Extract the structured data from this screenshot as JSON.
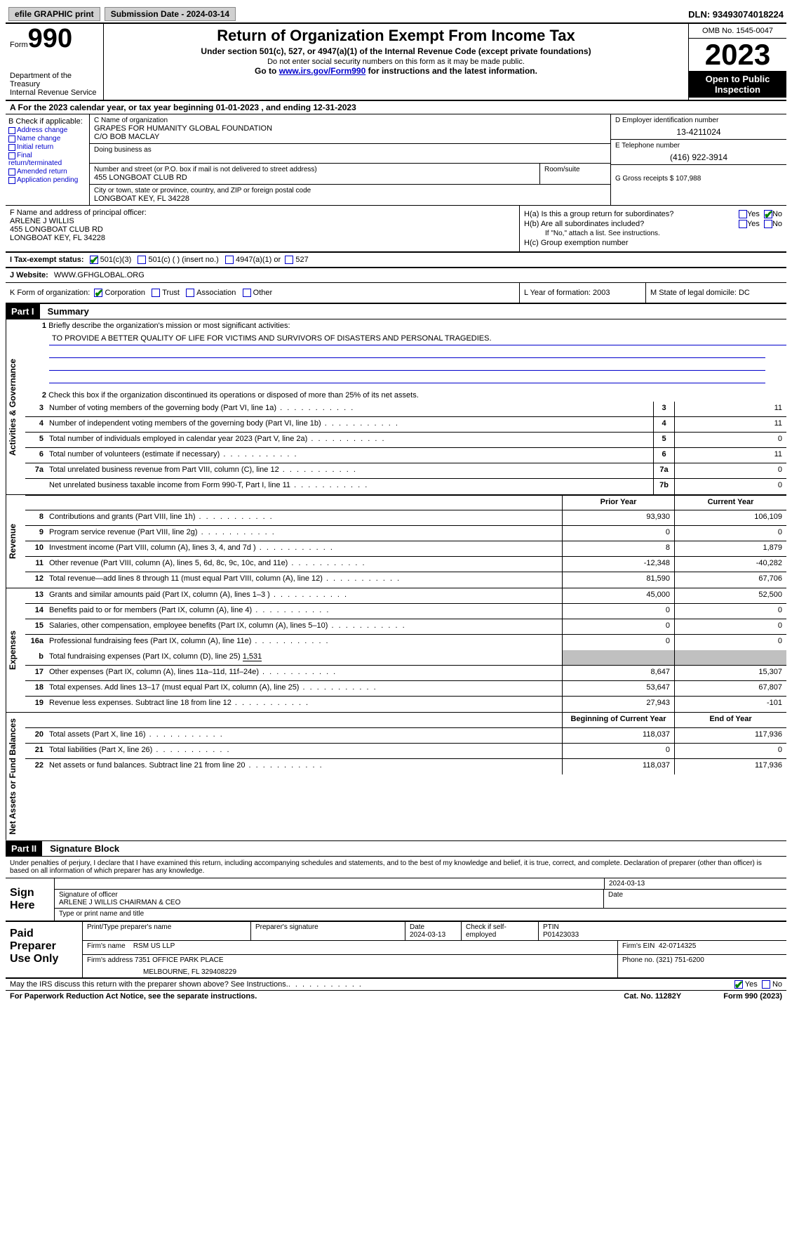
{
  "top": {
    "efile_btn": "efile GRAPHIC print",
    "submission_label": "Submission Date - 2024-03-14",
    "dln": "DLN: 93493074018224"
  },
  "header": {
    "form_label": "Form",
    "form_number": "990",
    "dept1": "Department of the Treasury",
    "dept2": "Internal Revenue Service",
    "title": "Return of Organization Exempt From Income Tax",
    "subtitle": "Under section 501(c), 527, or 4947(a)(1) of the Internal Revenue Code (except private foundations)",
    "instr1": "Do not enter social security numbers on this form as it may be made public.",
    "goto_prefix": "Go to ",
    "goto_link": "www.irs.gov/Form990",
    "goto_suffix": " for instructions and the latest information.",
    "omb": "OMB No. 1545-0047",
    "year": "2023",
    "open": "Open to Public Inspection"
  },
  "row_a": "A For the 2023 calendar year, or tax year beginning 01-01-2023   , and ending 12-31-2023",
  "col_b": {
    "label": "B Check if applicable:",
    "items": [
      "Address change",
      "Name change",
      "Initial return",
      "Final return/terminated",
      "Amended return",
      "Application pending"
    ]
  },
  "col_c": {
    "name_label": "C Name of organization",
    "name1": "GRAPES FOR HUMANITY GLOBAL FOUNDATION",
    "name2": "C/O BOB MACLAY",
    "dba_label": "Doing business as",
    "addr_label": "Number and street (or P.O. box if mail is not delivered to street address)",
    "addr": "455 LONGBOAT CLUB RD",
    "room_label": "Room/suite",
    "city_label": "City or town, state or province, country, and ZIP or foreign postal code",
    "city": "LONGBOAT KEY, FL  34228"
  },
  "col_d": {
    "ein_label": "D Employer identification number",
    "ein": "13-4211024",
    "tel_label": "E Telephone number",
    "tel": "(416) 922-3914",
    "gross_label": "G Gross receipts $ ",
    "gross": "107,988"
  },
  "f": {
    "label": "F  Name and address of principal officer:",
    "name": "ARLENE J WILLIS",
    "addr1": "455 LONGBOAT CLUB RD",
    "addr2": "LONGBOAT KEY, FL  34228"
  },
  "h": {
    "a_label": "H(a)  Is this a group return for subordinates?",
    "b_label": "H(b)  Are all subordinates included?",
    "b_note": "If \"No,\" attach a list. See instructions.",
    "c_label": "H(c)  Group exemption number",
    "yes": "Yes",
    "no": "No"
  },
  "i": {
    "label": "I   Tax-exempt status:",
    "opt1": "501(c)(3)",
    "opt2": "501(c) (  ) (insert no.)",
    "opt3": "4947(a)(1) or",
    "opt4": "527"
  },
  "j": {
    "label": "J   Website:",
    "val": "WWW.GFHGLOBAL.ORG"
  },
  "k": {
    "label": "K Form of organization:",
    "opts": [
      "Corporation",
      "Trust",
      "Association",
      "Other"
    ]
  },
  "l": {
    "label": "L Year of formation: ",
    "val": "2003"
  },
  "m": {
    "label": "M State of legal domicile: ",
    "val": "DC"
  },
  "part1": {
    "hdr": "Part I",
    "title": "Summary",
    "line1_label": "Briefly describe the organization's mission or most significant activities:",
    "mission": "TO PROVIDE A BETTER QUALITY OF LIFE FOR VICTIMS AND SURVIVORS OF DISASTERS AND PERSONAL TRAGEDIES.",
    "line2": "Check this box       if the organization discontinued its operations or disposed of more than 25% of its net assets.",
    "vert_gov": "Activities & Governance",
    "vert_rev": "Revenue",
    "vert_exp": "Expenses",
    "vert_net": "Net Assets or Fund Balances",
    "gov_rows": [
      {
        "n": "3",
        "t": "Number of voting members of the governing body (Part VI, line 1a)",
        "b": "3",
        "v": "11"
      },
      {
        "n": "4",
        "t": "Number of independent voting members of the governing body (Part VI, line 1b)",
        "b": "4",
        "v": "11"
      },
      {
        "n": "5",
        "t": "Total number of individuals employed in calendar year 2023 (Part V, line 2a)",
        "b": "5",
        "v": "0"
      },
      {
        "n": "6",
        "t": "Total number of volunteers (estimate if necessary)",
        "b": "6",
        "v": "11"
      },
      {
        "n": "7a",
        "t": "Total unrelated business revenue from Part VIII, column (C), line 12",
        "b": "7a",
        "v": "0"
      },
      {
        "n": "",
        "t": "Net unrelated business taxable income from Form 990-T, Part I, line 11",
        "b": "7b",
        "v": "0"
      }
    ],
    "col_prior": "Prior Year",
    "col_current": "Current Year",
    "rev_rows": [
      {
        "n": "8",
        "t": "Contributions and grants (Part VIII, line 1h)",
        "p": "93,930",
        "c": "106,109"
      },
      {
        "n": "9",
        "t": "Program service revenue (Part VIII, line 2g)",
        "p": "0",
        "c": "0"
      },
      {
        "n": "10",
        "t": "Investment income (Part VIII, column (A), lines 3, 4, and 7d )",
        "p": "8",
        "c": "1,879"
      },
      {
        "n": "11",
        "t": "Other revenue (Part VIII, column (A), lines 5, 6d, 8c, 9c, 10c, and 11e)",
        "p": "-12,348",
        "c": "-40,282"
      },
      {
        "n": "12",
        "t": "Total revenue—add lines 8 through 11 (must equal Part VIII, column (A), line 12)",
        "p": "81,590",
        "c": "67,706"
      }
    ],
    "exp_rows": [
      {
        "n": "13",
        "t": "Grants and similar amounts paid (Part IX, column (A), lines 1–3 )",
        "p": "45,000",
        "c": "52,500"
      },
      {
        "n": "14",
        "t": "Benefits paid to or for members (Part IX, column (A), line 4)",
        "p": "0",
        "c": "0"
      },
      {
        "n": "15",
        "t": "Salaries, other compensation, employee benefits (Part IX, column (A), lines 5–10)",
        "p": "0",
        "c": "0"
      },
      {
        "n": "16a",
        "t": "Professional fundraising fees (Part IX, column (A), line 11e)",
        "p": "0",
        "c": "0"
      }
    ],
    "exp_16b": {
      "n": "b",
      "t": "Total fundraising expenses (Part IX, column (D), line 25) ",
      "v": "1,531"
    },
    "exp_rows2": [
      {
        "n": "17",
        "t": "Other expenses (Part IX, column (A), lines 11a–11d, 11f–24e)",
        "p": "8,647",
        "c": "15,307"
      },
      {
        "n": "18",
        "t": "Total expenses. Add lines 13–17 (must equal Part IX, column (A), line 25)",
        "p": "53,647",
        "c": "67,807"
      },
      {
        "n": "19",
        "t": "Revenue less expenses. Subtract line 18 from line 12",
        "p": "27,943",
        "c": "-101"
      }
    ],
    "col_begin": "Beginning of Current Year",
    "col_end": "End of Year",
    "net_rows": [
      {
        "n": "20",
        "t": "Total assets (Part X, line 16)",
        "p": "118,037",
        "c": "117,936"
      },
      {
        "n": "21",
        "t": "Total liabilities (Part X, line 26)",
        "p": "0",
        "c": "0"
      },
      {
        "n": "22",
        "t": "Net assets or fund balances. Subtract line 21 from line 20",
        "p": "118,037",
        "c": "117,936"
      }
    ]
  },
  "part2": {
    "hdr": "Part II",
    "title": "Signature Block",
    "decl": "Under penalties of perjury, I declare that I have examined this return, including accompanying schedules and statements, and to the best of my knowledge and belief, it is true, correct, and complete. Declaration of preparer (other than officer) is based on all information of which preparer has any knowledge."
  },
  "sign": {
    "label": "Sign Here",
    "date": "2024-03-13",
    "sig_label": "Signature of officer",
    "officer": "ARLENE J WILLIS CHAIRMAN & CEO",
    "type_label": "Type or print name and title",
    "date_label": "Date"
  },
  "paid": {
    "label": "Paid Preparer Use Only",
    "h1": "Print/Type preparer's name",
    "h2": "Preparer's signature",
    "h3": "Date",
    "h3v": "2024-03-13",
    "h4": "Check        if self-employed",
    "h5": "PTIN",
    "h5v": "P01423033",
    "firm_label": "Firm's name",
    "firm": "RSM US LLP",
    "ein_label": "Firm's EIN",
    "ein": "42-0714325",
    "addr_label": "Firm's address",
    "addr1": "7351 OFFICE PARK PLACE",
    "addr2": "MELBOURNE, FL  329408229",
    "phone_label": "Phone no.",
    "phone": "(321) 751-6200"
  },
  "footer": {
    "discuss": "May the IRS discuss this return with the preparer shown above? See Instructions.",
    "yes": "Yes",
    "no": "No",
    "paperwork": "For Paperwork Reduction Act Notice, see the separate instructions.",
    "cat": "Cat. No. 11282Y",
    "form": "Form 990 (2023)"
  }
}
